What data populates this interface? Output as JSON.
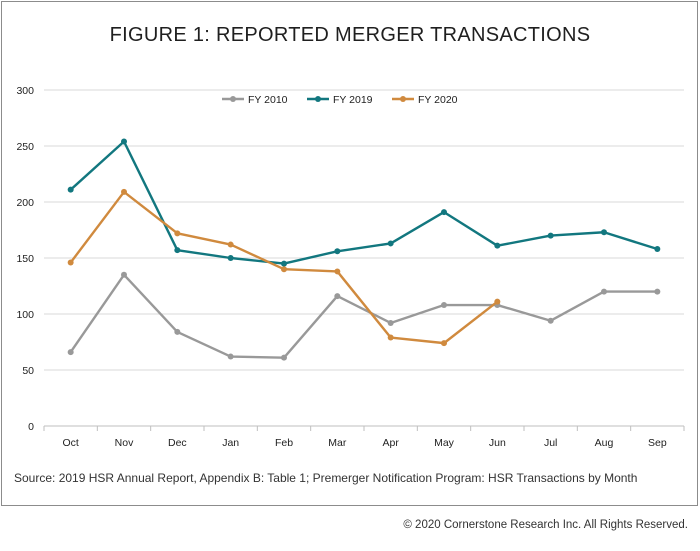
{
  "chart_data": {
    "type": "line",
    "title": "FIGURE 1: REPORTED MERGER TRANSACTIONS",
    "categories": [
      "Oct",
      "Nov",
      "Dec",
      "Jan",
      "Feb",
      "Mar",
      "Apr",
      "May",
      "Jun",
      "Jul",
      "Aug",
      "Sep"
    ],
    "yticks": [
      "0",
      "50",
      "100",
      "150",
      "200",
      "250",
      "300"
    ],
    "ylim": [
      0,
      300
    ],
    "xlabel": "",
    "ylabel": "",
    "legend_position": "top-center",
    "grid": true,
    "series": [
      {
        "name": "FY 2010",
        "color": "#999999",
        "values": [
          66,
          135,
          84,
          62,
          61,
          116,
          92,
          108,
          108,
          94,
          120,
          120
        ]
      },
      {
        "name": "FY 2019",
        "color": "#12777f",
        "values": [
          211,
          254,
          157,
          150,
          145,
          156,
          163,
          191,
          161,
          170,
          173,
          158
        ]
      },
      {
        "name": "FY 2020",
        "color": "#d08a3e",
        "values": [
          146,
          209,
          172,
          162,
          140,
          138,
          79,
          74,
          111,
          null,
          null,
          null
        ]
      }
    ]
  },
  "footer": {
    "source": "Source: 2019 HSR Annual Report, Appendix B: Table 1; Premerger Notification Program: HSR Transactions by Month",
    "copyright": "© 2020 Cornerstone Research Inc. All Rights Reserved."
  }
}
